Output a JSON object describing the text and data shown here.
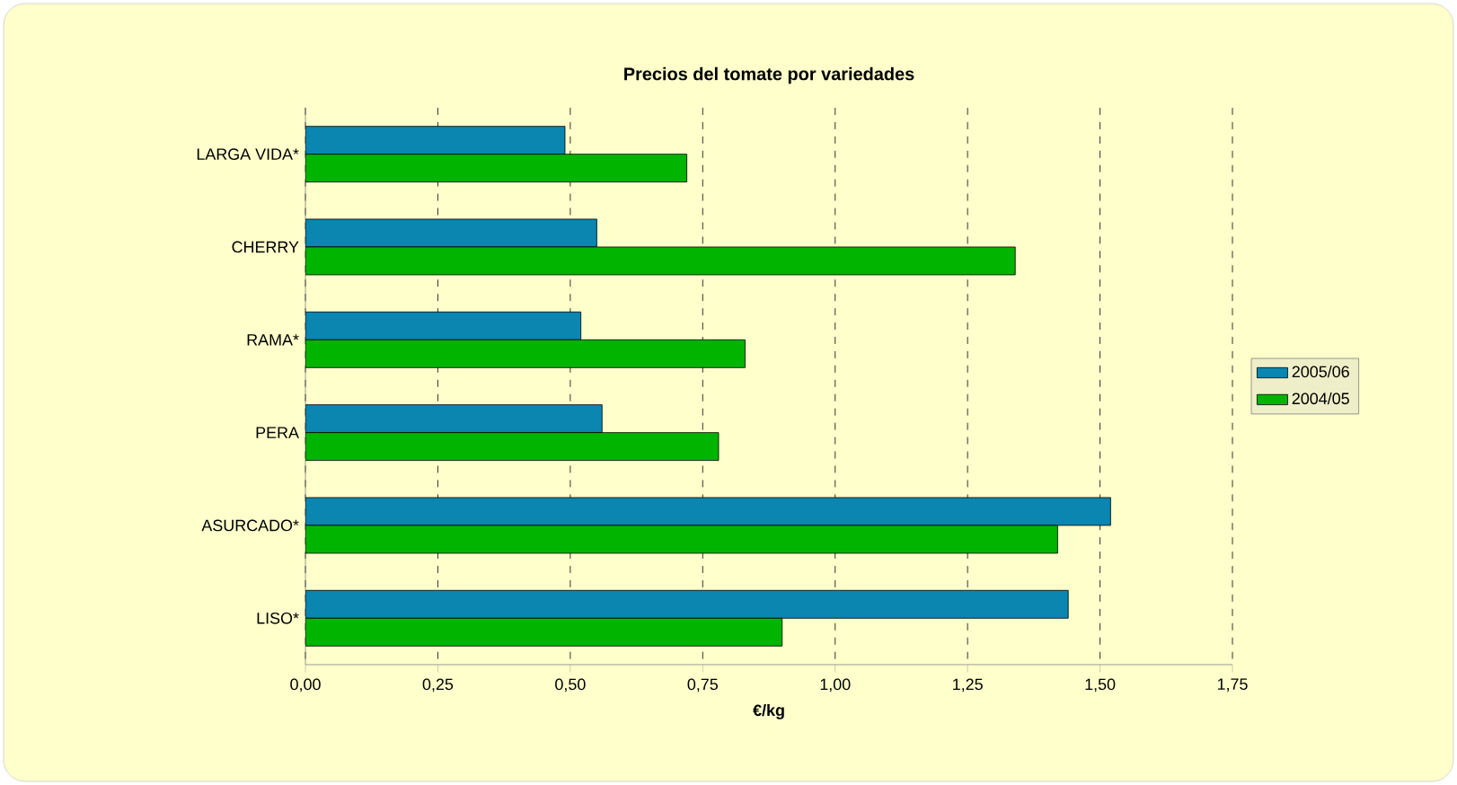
{
  "chart_data": {
    "type": "bar",
    "orientation": "horizontal",
    "title": "Precios del tomate por variedades",
    "xlabel": "€/kg",
    "categories": [
      "LARGA VIDA*",
      "CHERRY",
      "RAMA*",
      "PERA",
      "ASURCADO*",
      "LISO*"
    ],
    "series": [
      {
        "name": "2005/06",
        "color": "#0a86b0",
        "values": [
          0.49,
          0.55,
          0.52,
          0.56,
          1.52,
          1.44
        ]
      },
      {
        "name": "2004/05",
        "color": "#00b400",
        "values": [
          0.72,
          1.34,
          0.83,
          0.78,
          1.42,
          0.9
        ]
      }
    ],
    "xlim": [
      0,
      1.75
    ],
    "xticks": [
      {
        "value": 0,
        "label": "0,00"
      },
      {
        "value": 0.25,
        "label": "0,25"
      },
      {
        "value": 0.5,
        "label": "0,50"
      },
      {
        "value": 0.75,
        "label": "0,75"
      },
      {
        "value": 1.0,
        "label": "1,00"
      },
      {
        "value": 1.25,
        "label": "1,25"
      },
      {
        "value": 1.5,
        "label": "1,50"
      },
      {
        "value": 1.75,
        "label": "1,75"
      }
    ],
    "grid": "x",
    "legend": "right"
  }
}
